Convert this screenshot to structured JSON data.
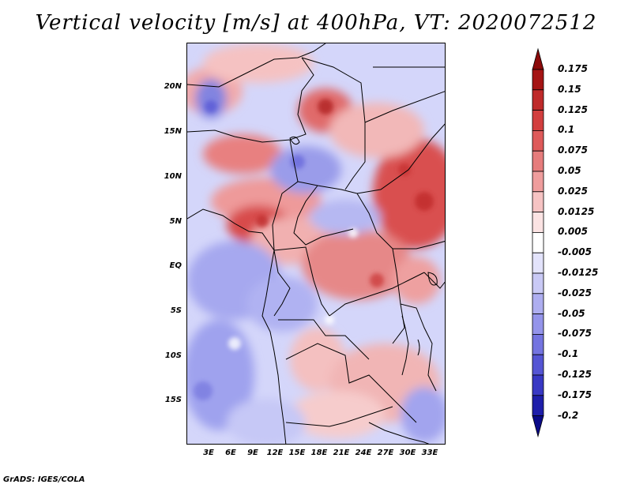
{
  "title": "Vertical velocity [m/s] at 400hPa, VT: 2020072512",
  "credit": "GrADS: IGES/COLA",
  "map": {
    "y_ticks": [
      "20N",
      "15N",
      "10N",
      "5N",
      "EQ",
      "5S",
      "10S",
      "15S"
    ],
    "x_ticks": [
      "3E",
      "6E",
      "9E",
      "12E",
      "15E",
      "18E",
      "21E",
      "24E",
      "27E",
      "30E",
      "33E"
    ]
  },
  "colorbar": {
    "labels": [
      "0.175",
      "0.15",
      "0.125",
      "0.1",
      "0.075",
      "0.05",
      "0.025",
      "0.0125",
      "0.005",
      "-0.005",
      "-0.0125",
      "-0.025",
      "-0.05",
      "-0.075",
      "-0.1",
      "-0.125",
      "-0.175",
      "-0.2"
    ],
    "colors": [
      "#8b0a0a",
      "#a51414",
      "#bf2a2a",
      "#d23e3e",
      "#de5a5a",
      "#e67c7c",
      "#ef9d9d",
      "#f6c3c3",
      "#fbe3e3",
      "#ffffff",
      "#e3e3fb",
      "#c9c9f5",
      "#aeaef0",
      "#9494ea",
      "#7474e0",
      "#5555d4",
      "#3838c4",
      "#1e1eaa",
      "#0a0a88"
    ]
  }
}
